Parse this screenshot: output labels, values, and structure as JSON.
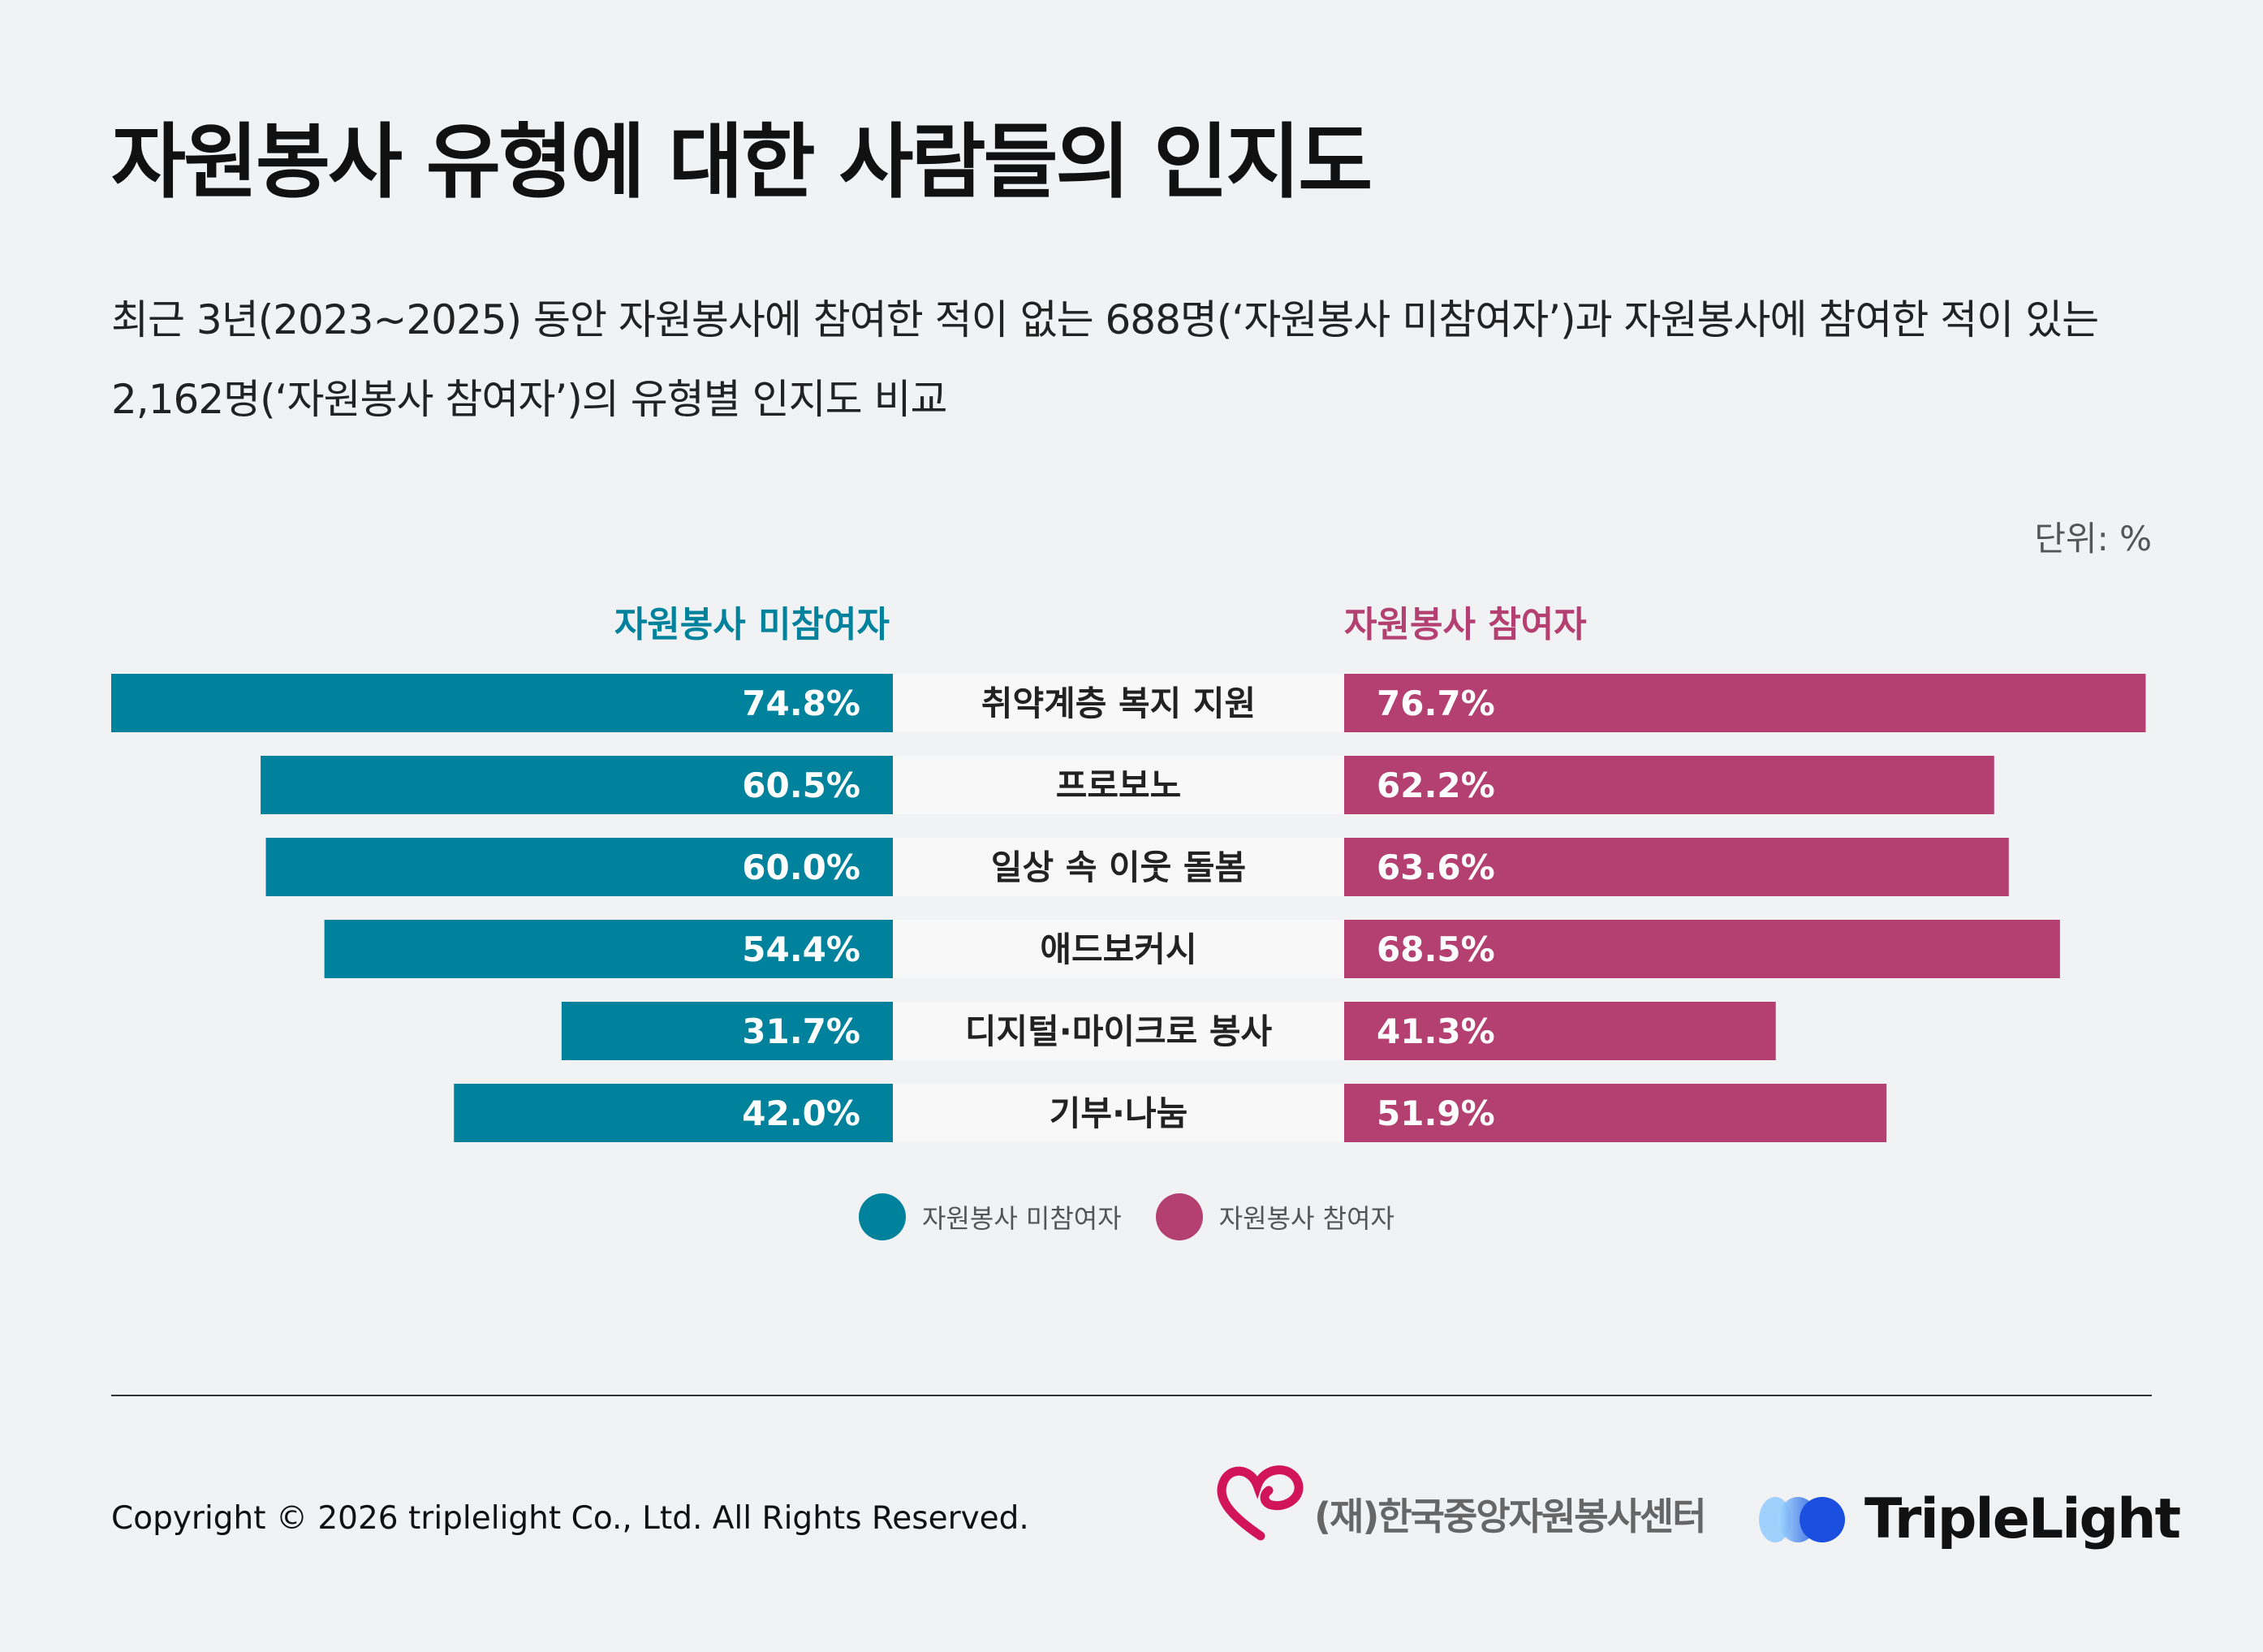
{
  "title": "자원봉사 유형에 대한 사람들의 인지도",
  "subtitle": "최근 3년(2023~2025) 동안 자원봉사에 참여한 적이 없는 688명(‘자원봉사 미참여자’)과 자원봉사에 참여한 적이 있는 2,162명(‘자원봉사 참여자’)의 유형별 인지도 비교",
  "unit": "단위: %",
  "colors": {
    "non_participant": "#01829c",
    "participant": "#b44072",
    "center_band": "#f8f8f8"
  },
  "chart_data": {
    "type": "bar",
    "orientation": "horizontal-butterfly",
    "categories": [
      "취약계층 복지 지원",
      "프로보노",
      "일상 속 이웃 돌봄",
      "애드보커시",
      "디지털·마이크로 봉사",
      "기부·나눔"
    ],
    "series": [
      {
        "name": "자원봉사 미참여자",
        "values": [
          74.8,
          60.5,
          60.0,
          54.4,
          31.7,
          42.0
        ],
        "labels": [
          "74.8%",
          "60.5%",
          "60.0%",
          "54.4%",
          "31.7%",
          "42.0%"
        ]
      },
      {
        "name": "자원봉사 참여자",
        "values": [
          76.7,
          62.2,
          63.6,
          68.5,
          41.3,
          51.9
        ],
        "labels": [
          "76.7%",
          "62.2%",
          "63.6%",
          "68.5%",
          "41.3%",
          "51.9%"
        ]
      }
    ],
    "xlim": [
      0,
      80
    ],
    "legend": "bottom-center"
  },
  "footer": {
    "copyright": "Copyright © 2026 triplelight Co., Ltd. All Rights Reserved.",
    "org_name": "(재)한국중앙자원봉사센터",
    "brand_name": "TripleLight"
  }
}
